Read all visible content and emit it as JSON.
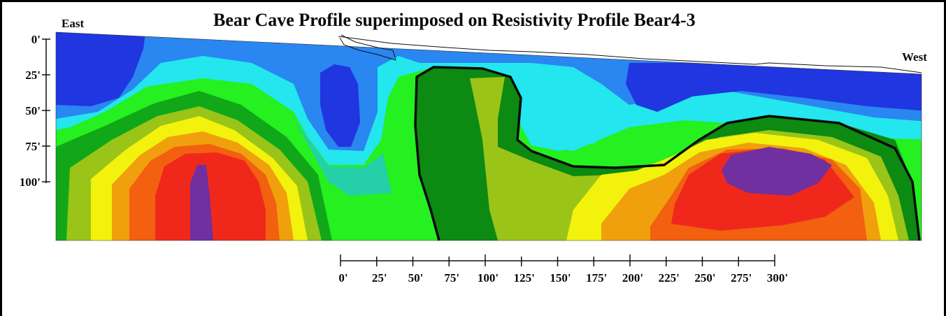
{
  "title": "Bear Cave Profile superimposed on Resistivity Profile Bear4-3",
  "direction_labels": {
    "left": "East",
    "right": "West"
  },
  "depth_axis_labels": [
    "0'",
    "25'",
    "50'",
    "75'",
    "100'"
  ],
  "distance_scale_labels": [
    "0'",
    "25'",
    "50'",
    "75'",
    "100'",
    "125'",
    "150'",
    "175'",
    "200'",
    "225'",
    "250'",
    "275'",
    "300'"
  ],
  "colors": {
    "blue": "#1f36e0",
    "light_blue": "#2a86f0",
    "cyan": "#23e6ee",
    "teal": "#25cfa8",
    "green": "#25f020",
    "dark_green": "#0c8a12",
    "green_2": "#10a818",
    "yellow_green": "#9ac418",
    "yellow": "#f2f20c",
    "orange": "#f0a00c",
    "orange_red": "#f26010",
    "red": "#f0281c",
    "purple": "#7030a0"
  }
}
